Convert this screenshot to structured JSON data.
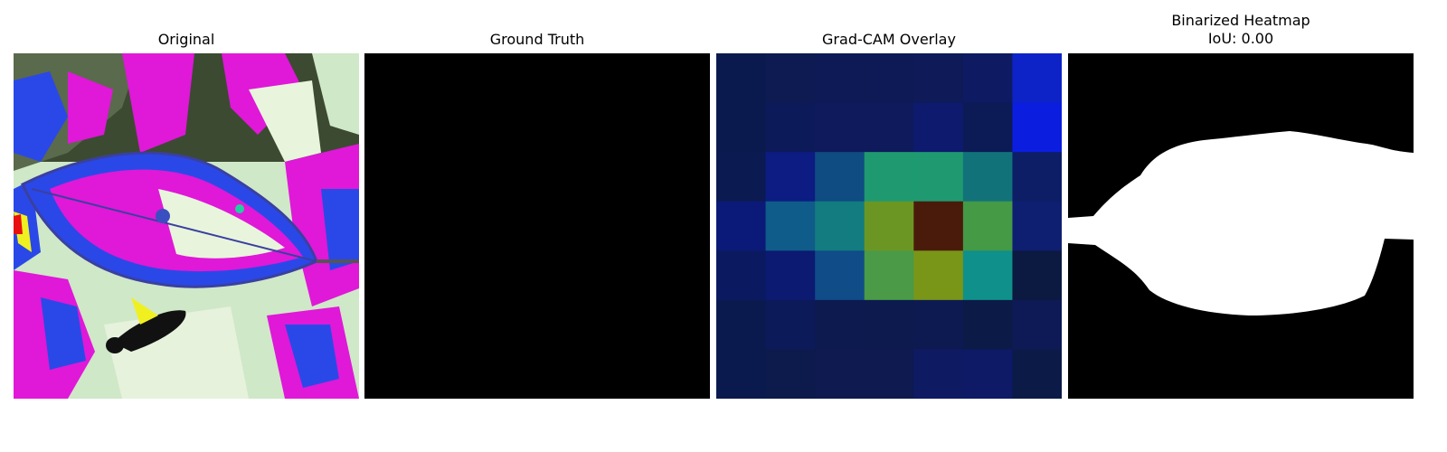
{
  "panels": [
    {
      "title": "Original"
    },
    {
      "title": "Ground Truth"
    },
    {
      "title": "Grad-CAM Overlay"
    },
    {
      "title_line1": "Binarized Heatmap",
      "title_line2": "IoU: 0.00"
    }
  ],
  "gradcam_grid": [
    [
      "#0b1a4e",
      "#0d1b52",
      "#0e1a55",
      "#0e1a55",
      "#0e1b58",
      "#0e1b62",
      "#0d23c8"
    ],
    [
      "#0b1a4e",
      "#0c1a5a",
      "#0e1a5c",
      "#0e1a5c",
      "#0e1a6e",
      "#0c1b55",
      "#0b1ee0"
    ],
    [
      "#0c1a52",
      "#0c1c82",
      "#0f4c82",
      "#1f9a70",
      "#1f9a70",
      "#12727a",
      "#0d1e66"
    ],
    [
      "#0b1a78",
      "#0f5c8a",
      "#137c80",
      "#6c9624",
      "#4a1b0a",
      "#459a45",
      "#0e1e70"
    ],
    [
      "#0b1a60",
      "#0c1a72",
      "#0f4c88",
      "#4a9a48",
      "#7a9618",
      "#10908a",
      "#0c1940"
    ],
    [
      "#0b1a4e",
      "#0c1a5a",
      "#0d1a50",
      "#0d1a4e",
      "#0d1a52",
      "#0c1a48",
      "#0d1a56"
    ],
    [
      "#0b1a4e",
      "#0c1a4c",
      "#0e1a50",
      "#0e1a50",
      "#0e1a62",
      "#0e1a66",
      "#0c1a48"
    ]
  ]
}
